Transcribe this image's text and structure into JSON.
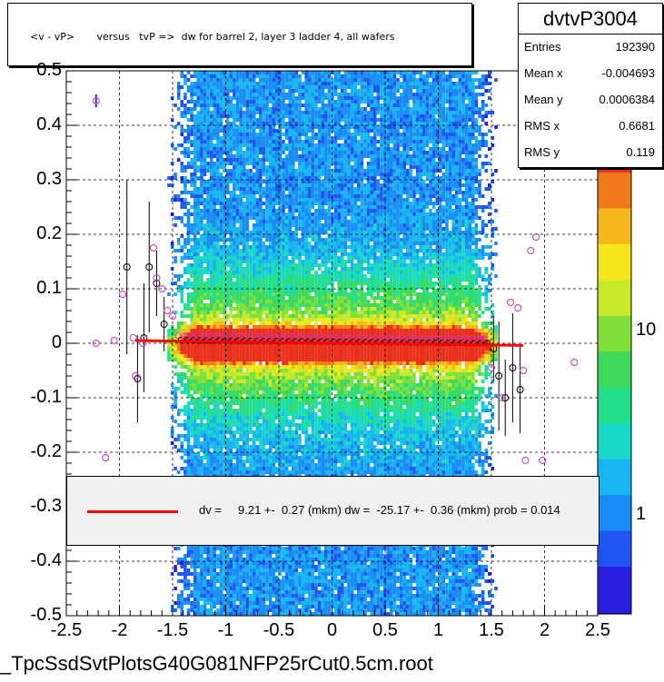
{
  "title": "<v - vP>       versus   tvP =>  dw for barrel 2, layer 3 ladder 4, all wafers",
  "stats": {
    "name": "dvtvP3004",
    "rows": [
      {
        "label": "Entries",
        "value": "192390"
      },
      {
        "label": "Mean x",
        "value": "-0.004693"
      },
      {
        "label": "Mean y",
        "value": "0.0006384"
      },
      {
        "label": "RMS x",
        "value": "0.6681"
      },
      {
        "label": "RMS y",
        "value": "0.119"
      }
    ]
  },
  "legend": {
    "text": "dv =     9.21 +-  0.27 (mkm) dw =  -25.17 +-  0.36 (mkm) prob = 0.014"
  },
  "footer": "_TpcSsdSvtPlotsG40G081NFP25rCut0.5cm.root",
  "colors": {
    "fit_line": "#ff0000",
    "profile_open": "#cc33cc",
    "profile_black": "#000000"
  },
  "chart_data": {
    "type": "heatmap",
    "xlim": [
      -2.5,
      2.5
    ],
    "ylim": [
      -0.5,
      0.5
    ],
    "x_ticks": [
      -2.5,
      -2,
      -1.5,
      -1,
      -0.5,
      0,
      0.5,
      1,
      1.5,
      2,
      2.5
    ],
    "x_tick_labels": [
      "-2.5",
      "-2",
      "-1.5",
      "-1",
      "-0.5",
      "0",
      "0.5",
      "1",
      "1.5",
      "2",
      "2.5"
    ],
    "y_ticks": [
      -0.5,
      -0.4,
      -0.3,
      -0.2,
      -0.1,
      0,
      0.1,
      0.2,
      0.3,
      0.4,
      0.5
    ],
    "y_tick_labels": [
      "-0.5",
      "-0.4",
      "-0.3",
      "-0.2",
      "-0.1",
      "0",
      "0.1",
      "0.2",
      "0.3",
      "0.4",
      "0.5"
    ],
    "colorbar_ticks": [
      1,
      10
    ],
    "colorbar_tick_labels": [
      "1",
      "10"
    ],
    "grid": true,
    "band_x_range": [
      -1.55,
      1.55
    ],
    "fit_line": {
      "x": [
        -1.85,
        1.8
      ],
      "y": [
        0.005,
        -0.004
      ]
    },
    "profile_points_open": [
      {
        "x": -2.22,
        "y": 0.445,
        "err": 0.012
      },
      {
        "x": -2.22,
        "y": 0.0,
        "err": 0.0
      },
      {
        "x": -2.13,
        "y": -0.21,
        "err": 0.0
      },
      {
        "x": -2.05,
        "y": 0.005,
        "err": 0.0
      },
      {
        "x": -1.97,
        "y": 0.09,
        "err": 0.0
      },
      {
        "x": -1.87,
        "y": 0.01,
        "err": 0.0
      },
      {
        "x": -1.85,
        "y": -0.06,
        "err": 0.0
      },
      {
        "x": -1.78,
        "y": 0.0,
        "err": 0.0
      },
      {
        "x": -1.68,
        "y": 0.175,
        "err": 0.0
      },
      {
        "x": -1.65,
        "y": 0.12,
        "err": 0.0
      },
      {
        "x": -1.6,
        "y": 0.1,
        "err": 0.0
      },
      {
        "x": -1.55,
        "y": 0.06,
        "err": 0.0
      },
      {
        "x": -1.5,
        "y": 0.05,
        "err": 0.0
      },
      {
        "x": 1.5,
        "y": -0.045,
        "err": 0.0
      },
      {
        "x": 1.6,
        "y": -0.1,
        "err": 0.0
      },
      {
        "x": 1.68,
        "y": 0.075,
        "err": 0.0
      },
      {
        "x": 1.75,
        "y": 0.065,
        "err": 0.0
      },
      {
        "x": 1.8,
        "y": -0.05,
        "err": 0.0
      },
      {
        "x": 1.82,
        "y": -0.215,
        "err": 0.0
      },
      {
        "x": 1.87,
        "y": 0.17,
        "err": 0.0
      },
      {
        "x": 1.92,
        "y": 0.195,
        "err": 0.0
      },
      {
        "x": 1.98,
        "y": -0.215,
        "err": 0.0
      },
      {
        "x": 2.28,
        "y": -0.035,
        "err": 0.0
      }
    ],
    "profile_points_black": [
      {
        "x": -1.93,
        "y": 0.14,
        "err": 0.16
      },
      {
        "x": -1.83,
        "y": -0.065,
        "err": 0.08
      },
      {
        "x": -1.77,
        "y": 0.01,
        "err": 0.1
      },
      {
        "x": -1.72,
        "y": 0.14,
        "err": 0.12
      },
      {
        "x": -1.65,
        "y": 0.11,
        "err": 0.06
      },
      {
        "x": -1.58,
        "y": 0.035,
        "err": 0.05
      },
      {
        "x": 1.52,
        "y": -0.01,
        "err": 0.06
      },
      {
        "x": 1.57,
        "y": -0.06,
        "err": 0.1
      },
      {
        "x": 1.63,
        "y": -0.1,
        "err": 0.07
      },
      {
        "x": 1.7,
        "y": -0.045,
        "err": 0.1
      },
      {
        "x": 1.77,
        "y": -0.085,
        "err": 0.08
      }
    ]
  }
}
